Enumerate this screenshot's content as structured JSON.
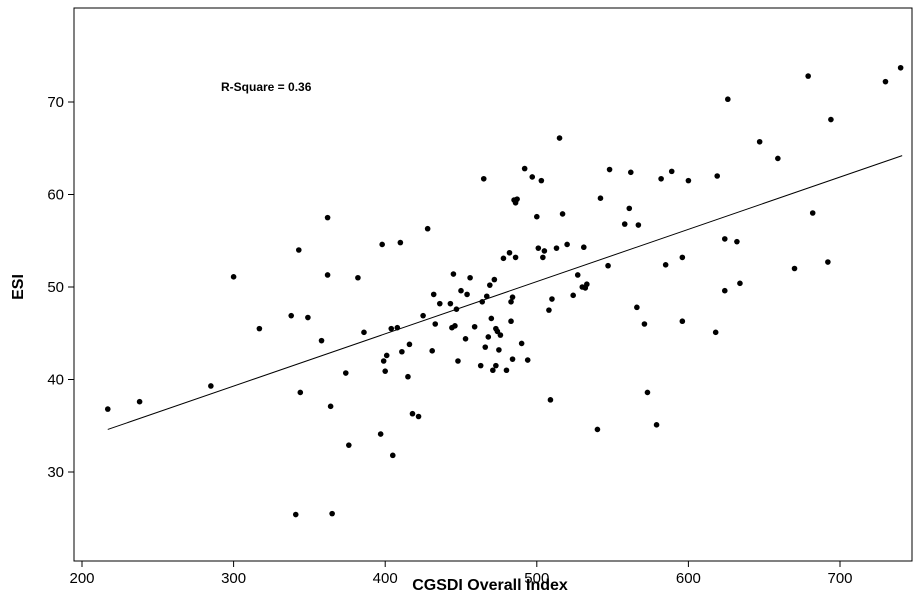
{
  "chart_data": {
    "type": "scatter",
    "xlabel": "CGSDI Overall Index",
    "ylabel": "ESI",
    "annotation": "R-Square = 0.36",
    "xlim": [
      200,
      750
    ],
    "ylim": [
      23,
      75
    ],
    "xticks": [
      200,
      300,
      400,
      500,
      600,
      700
    ],
    "yticks": [
      30,
      40,
      50,
      60,
      70
    ],
    "grid": false,
    "fit_line": {
      "x1": 217,
      "y1": 34.6,
      "x2": 741,
      "y2": 64.2
    },
    "points": [
      [
        217,
        36.8
      ],
      [
        238,
        37.6
      ],
      [
        285,
        39.3
      ],
      [
        300,
        51.1
      ],
      [
        317,
        45.5
      ],
      [
        338,
        46.9
      ],
      [
        341,
        25.4
      ],
      [
        343,
        54.0
      ],
      [
        344,
        38.6
      ],
      [
        349,
        46.7
      ],
      [
        358,
        44.2
      ],
      [
        362,
        51.3
      ],
      [
        362,
        57.5
      ],
      [
        364,
        37.1
      ],
      [
        365,
        25.5
      ],
      [
        374,
        40.7
      ],
      [
        376,
        32.9
      ],
      [
        382,
        51.0
      ],
      [
        386,
        45.1
      ],
      [
        397,
        34.1
      ],
      [
        398,
        54.6
      ],
      [
        399,
        42.0
      ],
      [
        400,
        40.9
      ],
      [
        401,
        42.6
      ],
      [
        404,
        45.5
      ],
      [
        405,
        31.8
      ],
      [
        408,
        45.6
      ],
      [
        410,
        54.8
      ],
      [
        411,
        43.0
      ],
      [
        415,
        40.3
      ],
      [
        416,
        43.8
      ],
      [
        418,
        36.3
      ],
      [
        422,
        36.0
      ],
      [
        425,
        46.9
      ],
      [
        428,
        56.3
      ],
      [
        431,
        43.1
      ],
      [
        432,
        49.2
      ],
      [
        433,
        46.0
      ],
      [
        436,
        48.2
      ],
      [
        443,
        48.2
      ],
      [
        444,
        45.6
      ],
      [
        445,
        51.4
      ],
      [
        446,
        45.8
      ],
      [
        447,
        47.6
      ],
      [
        448,
        42.0
      ],
      [
        450,
        49.6
      ],
      [
        453,
        44.4
      ],
      [
        454,
        49.2
      ],
      [
        456,
        51.0
      ],
      [
        459,
        45.7
      ],
      [
        463,
        41.5
      ],
      [
        464,
        48.4
      ],
      [
        465,
        61.7
      ],
      [
        466,
        43.5
      ],
      [
        467,
        49.0
      ],
      [
        468,
        44.6
      ],
      [
        469,
        50.2
      ],
      [
        470,
        46.6
      ],
      [
        471,
        41.0
      ],
      [
        472,
        50.8
      ],
      [
        473,
        45.5
      ],
      [
        473,
        41.5
      ],
      [
        474,
        45.2
      ],
      [
        475,
        43.2
      ],
      [
        476,
        44.8
      ],
      [
        478,
        53.1
      ],
      [
        480,
        41.0
      ],
      [
        482,
        53.7
      ],
      [
        483,
        48.4
      ],
      [
        483,
        46.3
      ],
      [
        484,
        42.2
      ],
      [
        484,
        48.9
      ],
      [
        485,
        59.4
      ],
      [
        486,
        53.2
      ],
      [
        486,
        59.1
      ],
      [
        487,
        59.5
      ],
      [
        490,
        43.9
      ],
      [
        492,
        62.8
      ],
      [
        494,
        42.1
      ],
      [
        497,
        61.9
      ],
      [
        500,
        57.6
      ],
      [
        501,
        54.2
      ],
      [
        503,
        61.5
      ],
      [
        504,
        53.2
      ],
      [
        505,
        53.9
      ],
      [
        508,
        47.5
      ],
      [
        509,
        37.8
      ],
      [
        510,
        48.7
      ],
      [
        513,
        54.2
      ],
      [
        515,
        66.1
      ],
      [
        517,
        57.9
      ],
      [
        520,
        54.6
      ],
      [
        524,
        49.1
      ],
      [
        527,
        51.3
      ],
      [
        530,
        50.0
      ],
      [
        531,
        54.3
      ],
      [
        532,
        49.9
      ],
      [
        533,
        50.3
      ],
      [
        540,
        34.6
      ],
      [
        542,
        59.6
      ],
      [
        547,
        52.3
      ],
      [
        548,
        62.7
      ],
      [
        558,
        56.8
      ],
      [
        561,
        58.5
      ],
      [
        562,
        62.4
      ],
      [
        566,
        47.8
      ],
      [
        567,
        56.7
      ],
      [
        571,
        46.0
      ],
      [
        573,
        38.6
      ],
      [
        579,
        35.1
      ],
      [
        582,
        61.7
      ],
      [
        585,
        52.4
      ],
      [
        589,
        62.5
      ],
      [
        596,
        53.2
      ],
      [
        596,
        46.3
      ],
      [
        600,
        61.5
      ],
      [
        618,
        45.1
      ],
      [
        619,
        62.0
      ],
      [
        624,
        55.2
      ],
      [
        624,
        49.6
      ],
      [
        626,
        70.3
      ],
      [
        632,
        54.9
      ],
      [
        634,
        50.4
      ],
      [
        647,
        65.7
      ],
      [
        659,
        63.9
      ],
      [
        670,
        52.0
      ],
      [
        679,
        72.8
      ],
      [
        682,
        58.0
      ],
      [
        692,
        52.7
      ],
      [
        694,
        68.1
      ],
      [
        730,
        72.2
      ],
      [
        740,
        73.7
      ]
    ]
  }
}
